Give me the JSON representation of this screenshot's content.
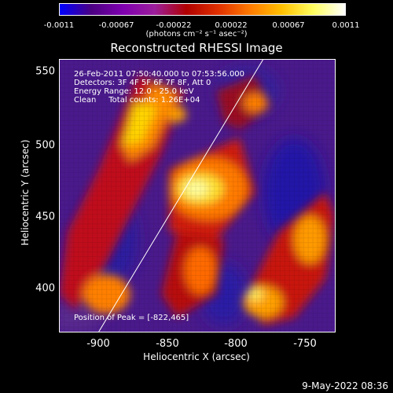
{
  "colorbar": {
    "colors": [
      "#0000ff",
      "#4b0082",
      "#7f00b0",
      "#9b1e9b",
      "#b00000",
      "#e03000",
      "#ff7a00",
      "#ffc000",
      "#ffff60",
      "#ffffff"
    ],
    "ticks": [
      "-0.0011",
      "-0.00067",
      "-0.00022",
      "0.00022",
      "0.00067",
      "0.0011"
    ],
    "units": "(photons cm⁻² s⁻¹ asec⁻²)"
  },
  "title": "Reconstructed RHESSI Image",
  "annotations": {
    "time_range": "26-Feb-2011 07:50:40.000 to 07:53:56.000",
    "detectors": "Detectors: 3F 4F 5F 6F 7F 8F, Att 0",
    "energy": "Energy Range: 12.0 - 25.0 keV",
    "clean": "Clean     Total counts: 1.26E+04",
    "peak": "Position of Peak = [-822,465]"
  },
  "axes": {
    "xlabel": "Heliocentric X (arcsec)",
    "ylabel": "Heliocentric Y (arcsec)",
    "xticks": [
      "-900",
      "-850",
      "-800",
      "-750"
    ],
    "yticks": [
      "550",
      "500",
      "450",
      "400"
    ]
  },
  "timestamp": "9-May-2022 08:36"
}
